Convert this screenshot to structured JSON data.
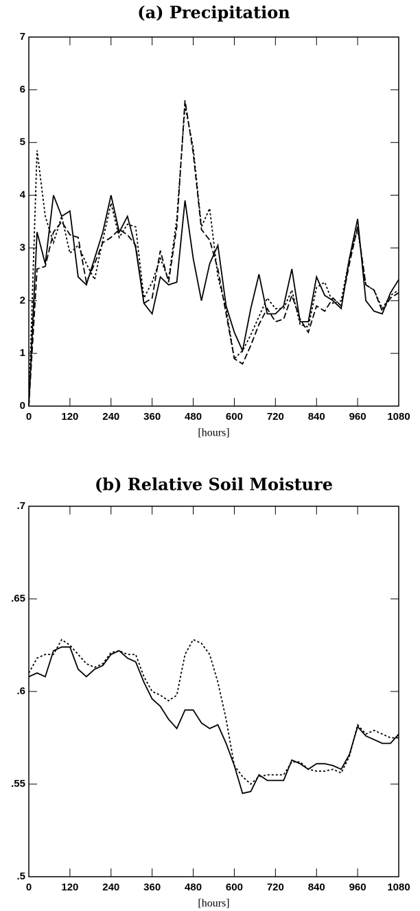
{
  "chart_data": [
    {
      "type": "line",
      "title": "(a) Precipitation",
      "xlabel": "[hours]",
      "x": [
        0,
        24,
        48,
        72,
        96,
        120,
        144,
        168,
        192,
        216,
        240,
        264,
        288,
        312,
        336,
        360,
        384,
        408,
        432,
        456,
        480,
        504,
        528,
        552,
        576,
        600,
        624,
        648,
        672,
        696,
        720,
        744,
        768,
        792,
        816,
        840,
        864,
        888,
        912,
        936,
        960,
        984,
        1008,
        1032,
        1056,
        1080
      ],
      "xlim": [
        0,
        1080
      ],
      "xticks": [
        0,
        120,
        240,
        360,
        480,
        600,
        720,
        840,
        960,
        1080
      ],
      "ylim": [
        0,
        7
      ],
      "yticks": [
        0,
        1,
        2,
        3,
        4,
        5,
        6,
        7
      ],
      "series": [
        {
          "color": "#000000",
          "style": "solid",
          "values": [
            0,
            3.3,
            2.7,
            4.0,
            3.6,
            3.7,
            2.45,
            2.3,
            2.8,
            3.3,
            4.0,
            3.3,
            3.6,
            3.0,
            1.95,
            1.75,
            2.45,
            2.3,
            2.35,
            3.9,
            2.8,
            2.0,
            2.7,
            3.05,
            1.9,
            1.4,
            1.05,
            1.85,
            2.5,
            1.75,
            1.75,
            1.9,
            2.6,
            1.6,
            1.6,
            2.45,
            2.1,
            2.0,
            1.85,
            2.8,
            3.55,
            2.0,
            1.8,
            1.75,
            2.15,
            2.4
          ]
        },
        {
          "color": "#000000",
          "style": "dashed",
          "values": [
            0,
            2.6,
            2.65,
            3.3,
            3.5,
            3.25,
            3.2,
            2.35,
            2.7,
            3.1,
            3.2,
            3.35,
            3.25,
            3.05,
            1.95,
            2.05,
            2.95,
            2.35,
            3.4,
            5.8,
            4.8,
            3.35,
            3.15,
            2.6,
            1.75,
            0.9,
            0.8,
            1.15,
            1.55,
            1.85,
            1.6,
            1.65,
            2.1,
            1.65,
            1.4,
            1.9,
            1.8,
            2.05,
            1.9,
            2.7,
            3.4,
            2.3,
            2.2,
            1.8,
            2.05,
            2.15
          ]
        },
        {
          "color": "#000000",
          "style": "dotted",
          "values": [
            0,
            4.85,
            3.6,
            3.1,
            3.6,
            2.9,
            3.05,
            2.7,
            2.4,
            3.15,
            3.85,
            3.2,
            3.45,
            3.4,
            2.05,
            2.35,
            2.8,
            2.4,
            3.55,
            5.7,
            4.9,
            3.4,
            3.75,
            2.45,
            1.85,
            0.9,
            1.05,
            1.35,
            1.7,
            2.05,
            1.85,
            1.85,
            2.2,
            1.55,
            1.5,
            2.25,
            2.35,
            1.95,
            2.0,
            2.8,
            3.35,
            2.3,
            2.2,
            1.85,
            2.1,
            2.2
          ]
        }
      ]
    },
    {
      "type": "line",
      "title": "(b) Relative Soil Moisture",
      "xlabel": "[hours]",
      "x": [
        0,
        24,
        48,
        72,
        96,
        120,
        144,
        168,
        192,
        216,
        240,
        264,
        288,
        312,
        336,
        360,
        384,
        408,
        432,
        456,
        480,
        504,
        528,
        552,
        576,
        600,
        624,
        648,
        672,
        696,
        720,
        744,
        768,
        792,
        816,
        840,
        864,
        888,
        912,
        936,
        960,
        984,
        1008,
        1032,
        1056,
        1080
      ],
      "xlim": [
        0,
        1080
      ],
      "xticks": [
        0,
        120,
        240,
        360,
        480,
        600,
        720,
        840,
        960,
        1080
      ],
      "ylim": [
        0.5,
        0.7
      ],
      "yticks": [
        {
          "value": 0.5,
          "label": ".5"
        },
        {
          "value": 0.55,
          "label": ".55"
        },
        {
          "value": 0.6,
          "label": ".6"
        },
        {
          "value": 0.65,
          "label": ".65"
        },
        {
          "value": 0.7,
          "label": ".7"
        }
      ],
      "series": [
        {
          "color": "#000000",
          "style": "solid",
          "values": [
            0.608,
            0.61,
            0.608,
            0.622,
            0.624,
            0.624,
            0.612,
            0.608,
            0.612,
            0.614,
            0.62,
            0.622,
            0.618,
            0.616,
            0.605,
            0.596,
            0.592,
            0.585,
            0.58,
            0.59,
            0.59,
            0.583,
            0.58,
            0.582,
            0.572,
            0.56,
            0.545,
            0.546,
            0.555,
            0.552,
            0.552,
            0.552,
            0.563,
            0.561,
            0.558,
            0.561,
            0.561,
            0.56,
            0.558,
            0.566,
            0.581,
            0.576,
            0.574,
            0.572,
            0.572,
            0.577
          ]
        },
        {
          "color": "#000000",
          "style": "dotted",
          "values": [
            0.61,
            0.618,
            0.62,
            0.62,
            0.628,
            0.625,
            0.62,
            0.615,
            0.613,
            0.615,
            0.621,
            0.622,
            0.62,
            0.62,
            0.608,
            0.6,
            0.598,
            0.595,
            0.598,
            0.62,
            0.628,
            0.626,
            0.62,
            0.605,
            0.585,
            0.56,
            0.554,
            0.55,
            0.554,
            0.555,
            0.555,
            0.555,
            0.562,
            0.562,
            0.558,
            0.557,
            0.557,
            0.558,
            0.556,
            0.565,
            0.582,
            0.577,
            0.579,
            0.577,
            0.575,
            0.575
          ]
        }
      ]
    }
  ]
}
